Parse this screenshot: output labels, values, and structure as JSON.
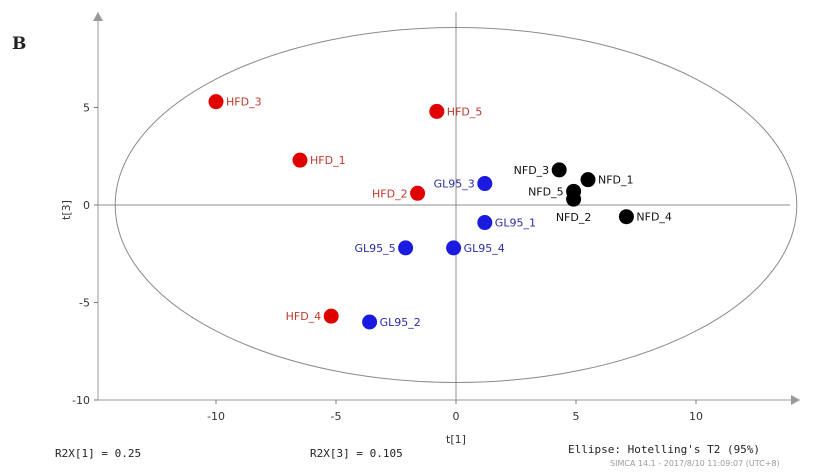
{
  "panel_letter": "B",
  "chart_data": {
    "type": "scatter",
    "xlabel": "t[1]",
    "ylabel": "t[3]",
    "xlim": [
      -15,
      14.5
    ],
    "ylim": [
      -10,
      10
    ],
    "xticks": [
      -10,
      -5,
      0,
      5,
      10
    ],
    "yticks": [
      -10,
      -5,
      0,
      5
    ],
    "ellipse": {
      "cx": 0,
      "cy": 0,
      "rx": 14.2,
      "ry": 9.1,
      "label": "Ellipse: Hotelling's T2 (95%)"
    },
    "colors": {
      "HFD": "#e00000",
      "GL95": "#1a1ae0",
      "NFD": "#000000",
      "HFD_text": "#c0392b",
      "GL95_text": "#2c2ca8",
      "NFD_text": "#111111"
    },
    "series": [
      {
        "name": "HFD",
        "points": [
          {
            "label": "HFD_3",
            "x": -10.0,
            "y": 5.3
          },
          {
            "label": "HFD_5",
            "x": -0.8,
            "y": 4.8
          },
          {
            "label": "HFD_1",
            "x": -6.5,
            "y": 2.3
          },
          {
            "label": "HFD_2",
            "x": -1.6,
            "y": 0.6
          },
          {
            "label": "HFD_4",
            "x": -5.2,
            "y": -5.7
          }
        ]
      },
      {
        "name": "GL95",
        "points": [
          {
            "label": "GL95_3",
            "x": 1.2,
            "y": 1.1
          },
          {
            "label": "GL95_1",
            "x": 1.2,
            "y": -0.9
          },
          {
            "label": "GL95_5",
            "x": -2.1,
            "y": -2.2
          },
          {
            "label": "GL95_4",
            "x": -0.1,
            "y": -2.2
          },
          {
            "label": "GL95_2",
            "x": -3.6,
            "y": -6.0
          }
        ]
      },
      {
        "name": "NFD",
        "points": [
          {
            "label": "NFD_3",
            "x": 4.3,
            "y": 1.8
          },
          {
            "label": "NFD_1",
            "x": 5.5,
            "y": 1.3
          },
          {
            "label": "NFD_5",
            "x": 4.9,
            "y": 0.7
          },
          {
            "label": "NFD_2",
            "x": 4.9,
            "y": 0.3
          },
          {
            "label": "NFD_4",
            "x": 7.1,
            "y": -0.6
          }
        ]
      }
    ]
  },
  "footer": {
    "r2x1": "R2X[1] = 0.25",
    "r2x3": "R2X[3] = 0.105",
    "ellipse": "Ellipse: Hotelling's T2 (95%)",
    "software": "SIMCA 14.1 - 2017/8/10 11:09:07 (UTC+8)"
  }
}
